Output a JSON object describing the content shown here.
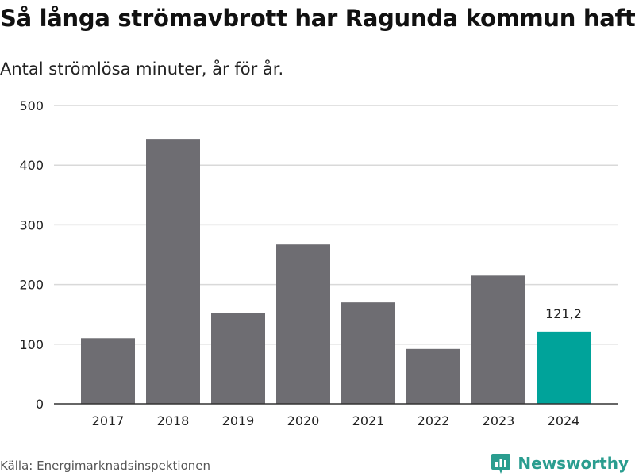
{
  "title": "Så långa strömavbrott har Ragunda kommun haft",
  "subtitle": "Antal strömlösa minuter, år för år.",
  "source": "Källa: Energimarknadsinspektionen",
  "brand": {
    "name": "Newsworthy",
    "icon": "newsworthy-logo-icon",
    "color": "#2a9d8f"
  },
  "colors": {
    "bar": "#6e6d72",
    "highlight": "#00a39a",
    "grid": "#d9d9d9",
    "axis": "#333333",
    "text": "#222222"
  },
  "chart_data": {
    "type": "bar",
    "categories": [
      "2017",
      "2018",
      "2019",
      "2020",
      "2021",
      "2022",
      "2023",
      "2024"
    ],
    "values": [
      110,
      444,
      152,
      267,
      170,
      92,
      215,
      121.2
    ],
    "highlight_index": 7,
    "data_labels": [
      {
        "index": 7,
        "text": "121,2"
      }
    ],
    "yticks": [
      0,
      100,
      200,
      300,
      400,
      500
    ],
    "ylim": [
      0,
      500
    ],
    "grid": true,
    "xlabel": "",
    "ylabel": ""
  }
}
